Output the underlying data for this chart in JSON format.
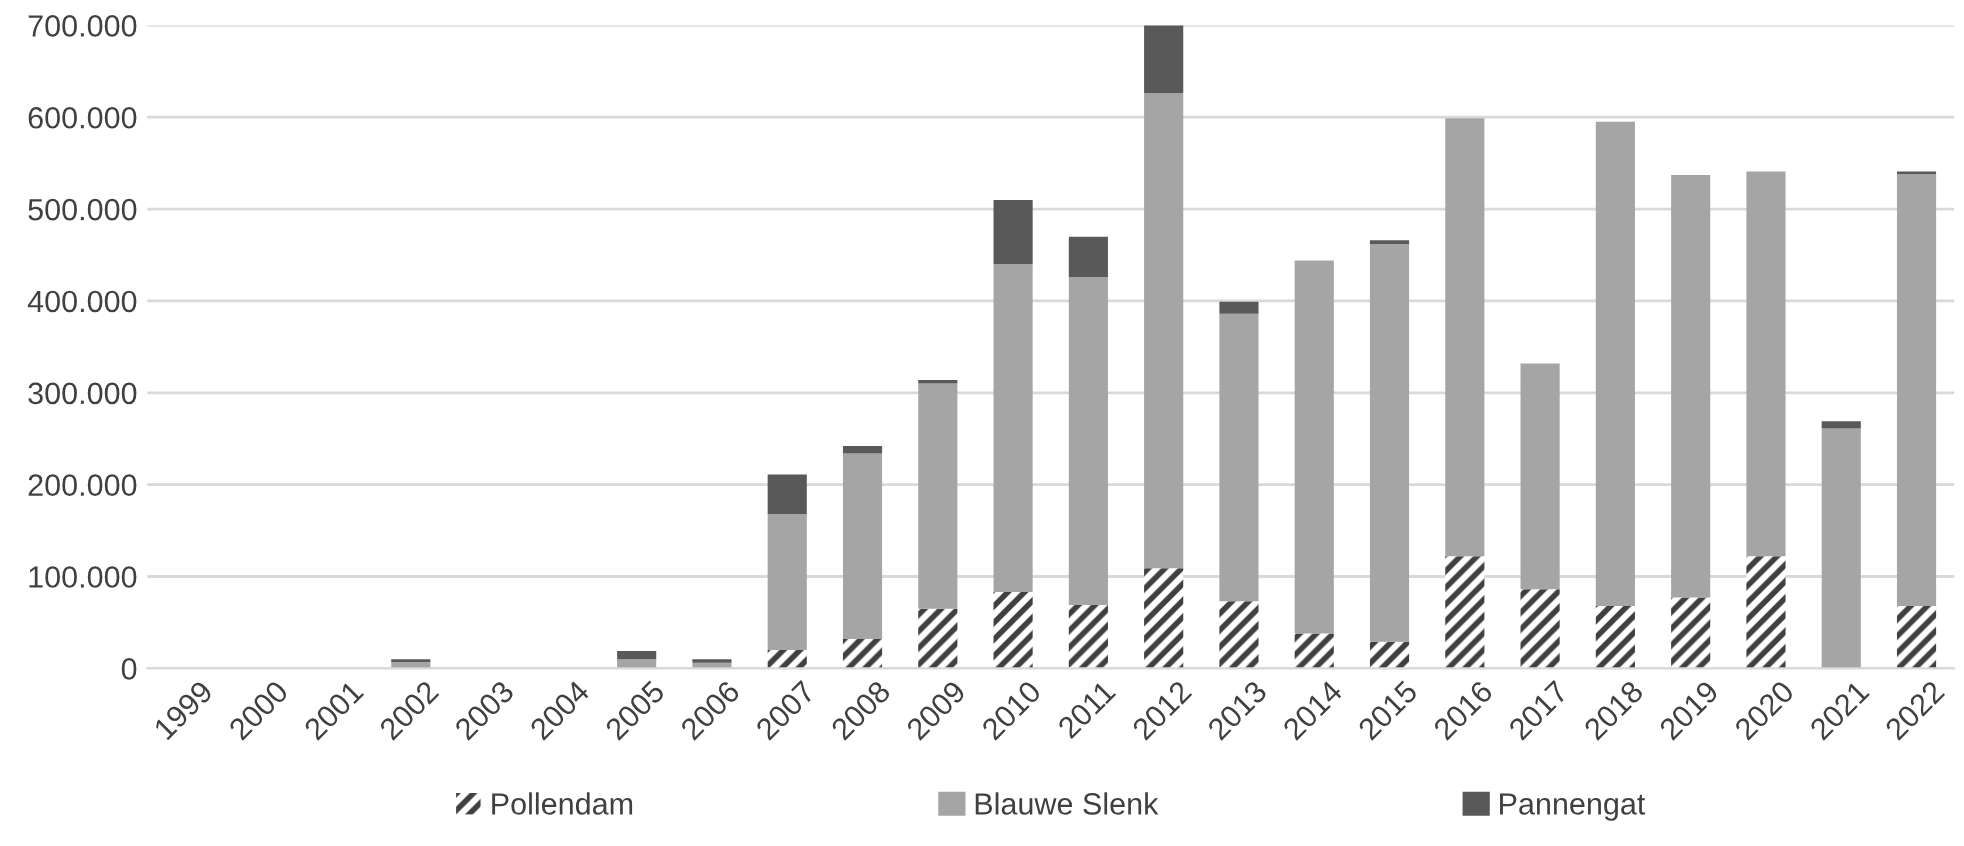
{
  "chart_data": {
    "type": "bar",
    "stacked": true,
    "categories": [
      "1999",
      "2000",
      "2001",
      "2002",
      "2003",
      "2004",
      "2005",
      "2006",
      "2007",
      "2008",
      "2009",
      "2010",
      "2011",
      "2012",
      "2013",
      "2014",
      "2015",
      "2016",
      "2017",
      "2018",
      "2019",
      "2020",
      "2021",
      "2022"
    ],
    "series": [
      {
        "name": "Pollendam",
        "color": "#404040",
        "values": [
          0,
          0,
          0,
          0,
          0,
          0,
          0,
          0,
          20000,
          32000,
          65000,
          83000,
          69000,
          109000,
          73000,
          38000,
          29000,
          122000,
          86000,
          68000,
          77000,
          122000,
          0,
          68000
        ]
      },
      {
        "name": "Blauwe Slenk",
        "color": "#a5a5a5",
        "values": [
          0,
          0,
          0,
          7000,
          0,
          0,
          10000,
          6000,
          148000,
          202000,
          245000,
          357000,
          357000,
          517000,
          313000,
          406000,
          433000,
          477000,
          246000,
          527000,
          460000,
          419000,
          261000,
          470000
        ]
      },
      {
        "name": "Pannengat",
        "color": "#595959",
        "values": [
          0,
          0,
          0,
          3000,
          0,
          0,
          9000,
          4000,
          43000,
          8000,
          4000,
          70000,
          44000,
          76000,
          13000,
          0,
          4000,
          0,
          0,
          0,
          0,
          0,
          8000,
          3000
        ]
      }
    ],
    "ylim": [
      0,
      700000
    ],
    "yticks": [
      0,
      {
        "value": 100000,
        "label": "100.000"
      },
      {
        "value": 200000,
        "label": "200.000"
      },
      {
        "value": 300000,
        "label": "300.000"
      },
      {
        "value": 400000,
        "label": "400.000"
      },
      {
        "value": 500000,
        "label": "500.000"
      },
      {
        "value": 600000,
        "label": "600.000"
      },
      {
        "value": 700000,
        "label": "700.000"
      }
    ],
    "grid": "y",
    "legend": "bottom"
  }
}
